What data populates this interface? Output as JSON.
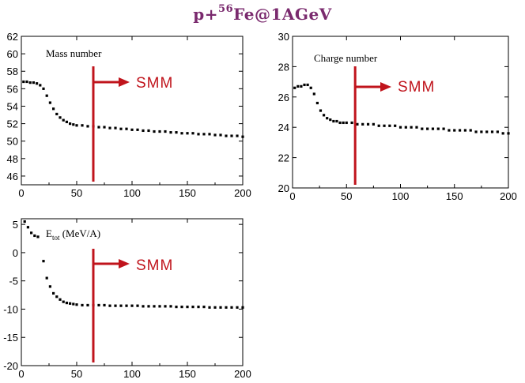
{
  "title": {
    "prefix": "p+",
    "superscript": "56",
    "suffix": "Fe@1AGeV"
  },
  "colors": {
    "title": "#7a2a6e",
    "marker": "#c0141c",
    "points": "#000000"
  },
  "chart_data": [
    {
      "type": "scatter",
      "label": "Mass number",
      "xlim": [
        0,
        200
      ],
      "ylim": [
        45,
        62
      ],
      "xticks": [
        0,
        50,
        100,
        150,
        200
      ],
      "yticks": [
        46,
        48,
        50,
        52,
        54,
        56,
        58,
        60,
        62
      ],
      "marker_x": 65,
      "marker_label": "SMM",
      "x": [
        2,
        5,
        8,
        11,
        14,
        17,
        20,
        23,
        26,
        29,
        32,
        35,
        38,
        41,
        44,
        47,
        50,
        55,
        60,
        65,
        70,
        75,
        80,
        85,
        90,
        95,
        100,
        105,
        110,
        115,
        120,
        125,
        130,
        135,
        140,
        145,
        150,
        155,
        160,
        165,
        170,
        175,
        180,
        185,
        190,
        195,
        200
      ],
      "y": [
        56.8,
        56.8,
        56.7,
        56.7,
        56.6,
        56.4,
        56.0,
        55.2,
        54.4,
        53.7,
        53.1,
        52.7,
        52.4,
        52.2,
        52.0,
        51.9,
        51.8,
        51.8,
        51.7,
        51.7,
        51.6,
        51.6,
        51.5,
        51.5,
        51.4,
        51.4,
        51.3,
        51.3,
        51.2,
        51.2,
        51.1,
        51.1,
        51.1,
        51.0,
        51.0,
        50.9,
        50.9,
        50.9,
        50.8,
        50.8,
        50.8,
        50.7,
        50.7,
        50.6,
        50.6,
        50.6,
        50.5
      ]
    },
    {
      "type": "scatter",
      "label": "Charge number",
      "xlim": [
        0,
        200
      ],
      "ylim": [
        20,
        30
      ],
      "xticks": [
        0,
        50,
        100,
        150,
        200
      ],
      "yticks": [
        20,
        22,
        24,
        26,
        28,
        30
      ],
      "marker_x": 58,
      "marker_label": "SMM",
      "x": [
        2,
        5,
        8,
        11,
        14,
        17,
        20,
        23,
        26,
        29,
        32,
        35,
        38,
        41,
        44,
        47,
        50,
        55,
        60,
        65,
        70,
        75,
        80,
        85,
        90,
        95,
        100,
        105,
        110,
        115,
        120,
        125,
        130,
        135,
        140,
        145,
        150,
        155,
        160,
        165,
        170,
        175,
        180,
        185,
        190,
        195,
        200
      ],
      "y": [
        26.6,
        26.7,
        26.7,
        26.8,
        26.8,
        26.6,
        26.2,
        25.6,
        25.1,
        24.8,
        24.6,
        24.5,
        24.4,
        24.4,
        24.3,
        24.3,
        24.3,
        24.3,
        24.2,
        24.2,
        24.2,
        24.2,
        24.1,
        24.1,
        24.1,
        24.1,
        24.0,
        24.0,
        24.0,
        24.0,
        23.9,
        23.9,
        23.9,
        23.9,
        23.9,
        23.8,
        23.8,
        23.8,
        23.8,
        23.8,
        23.7,
        23.7,
        23.7,
        23.7,
        23.7,
        23.6,
        23.6
      ]
    },
    {
      "type": "scatter",
      "label": "E_tot (MeV/A)",
      "label_main": "E",
      "label_sub": "tot",
      "label_unit": "(MeV/A)",
      "xlim": [
        0,
        200
      ],
      "ylim": [
        -20,
        6
      ],
      "xticks": [
        0,
        50,
        100,
        150,
        200
      ],
      "yticks": [
        -20,
        -15,
        -10,
        -5,
        0,
        5
      ],
      "marker_x": 65,
      "marker_label": "SMM",
      "x": [
        3,
        6,
        9,
        12,
        15,
        20,
        23,
        26,
        29,
        32,
        35,
        38,
        41,
        44,
        47,
        50,
        55,
        60,
        65,
        70,
        75,
        80,
        85,
        90,
        95,
        100,
        105,
        110,
        115,
        120,
        125,
        130,
        135,
        140,
        145,
        150,
        155,
        160,
        165,
        170,
        175,
        180,
        185,
        190,
        195,
        200
      ],
      "y": [
        5.5,
        4.5,
        3.5,
        3.0,
        2.8,
        -1.5,
        -4.5,
        -6.0,
        -7.2,
        -7.8,
        -8.3,
        -8.7,
        -8.9,
        -9.0,
        -9.1,
        -9.2,
        -9.3,
        -9.3,
        -9.3,
        -9.3,
        -9.3,
        -9.4,
        -9.4,
        -9.4,
        -9.4,
        -9.4,
        -9.4,
        -9.5,
        -9.5,
        -9.5,
        -9.5,
        -9.5,
        -9.5,
        -9.6,
        -9.6,
        -9.6,
        -9.6,
        -9.6,
        -9.6,
        -9.7,
        -9.7,
        -9.7,
        -9.7,
        -9.7,
        -9.7,
        -9.7
      ]
    }
  ]
}
